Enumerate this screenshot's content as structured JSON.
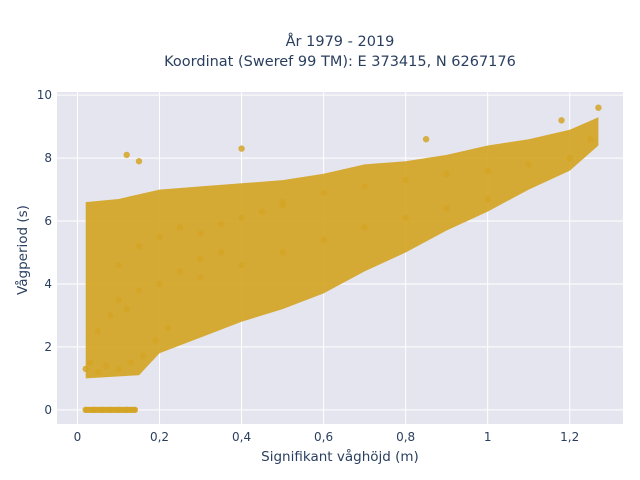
{
  "chart_data": {
    "type": "scatter",
    "title_line1": "År 1979 - 2019",
    "title_line2": "Koordinat (Sweref 99 TM): E 373415, N 6267176",
    "xlabel": "Signifikant våghöjd (m)",
    "ylabel": "Vågperiod (s)",
    "xlim": [
      -0.05,
      1.33
    ],
    "ylim": [
      -0.45,
      10.1
    ],
    "x_ticks": [
      "0",
      "0,2",
      "0,4",
      "0,6",
      "0,8",
      "1",
      "1,2"
    ],
    "y_ticks": [
      "0",
      "2",
      "4",
      "6",
      "8",
      "10"
    ],
    "grid": true,
    "marker_color": "#d4a524",
    "plot_background": "#e5e5ef",
    "series": [
      {
        "x": [
          0.02,
          0.04,
          0.06,
          0.08,
          0.1,
          0.12,
          0.14,
          0.02,
          0.03,
          0.05,
          0.07,
          0.1,
          0.13,
          0.16,
          0.19,
          0.22,
          0.05,
          0.08,
          0.1,
          0.12,
          0.15,
          0.2,
          0.25,
          0.3,
          0.35,
          0.1,
          0.15,
          0.2,
          0.25,
          0.3,
          0.35,
          0.4,
          0.45,
          0.5,
          0.3,
          0.4,
          0.5,
          0.6,
          0.7,
          0.8,
          0.9,
          1.0,
          0.5,
          0.6,
          0.7,
          0.8,
          0.9,
          1.0,
          1.1,
          1.2,
          1.25,
          0.12,
          0.15,
          0.4,
          0.85,
          1.18,
          1.27
        ],
        "y": [
          0,
          0,
          0,
          0,
          0,
          0,
          0,
          1.3,
          1.5,
          1.2,
          1.4,
          1.3,
          1.5,
          1.7,
          2.2,
          2.6,
          2.5,
          3.0,
          3.5,
          3.2,
          3.8,
          4.0,
          4.4,
          4.8,
          5.0,
          4.6,
          5.2,
          5.5,
          5.8,
          5.6,
          5.9,
          6.1,
          6.3,
          6.5,
          4.2,
          4.6,
          5.0,
          5.4,
          5.8,
          6.1,
          6.4,
          6.7,
          6.6,
          6.9,
          7.1,
          7.3,
          7.5,
          7.6,
          7.8,
          8.0,
          8.6,
          8.1,
          7.9,
          8.3,
          8.6,
          9.2,
          9.6
        ]
      }
    ]
  }
}
